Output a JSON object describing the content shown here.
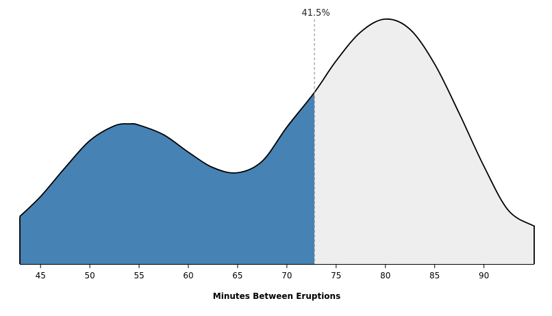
{
  "chart_data": {
    "type": "area",
    "xlabel": "Minutes Between Eruptions",
    "xlim": [
      42.9,
      95.1
    ],
    "ylim": [
      0,
      0.04
    ],
    "x_ticks": [
      45,
      50,
      55,
      60,
      65,
      70,
      75,
      80,
      85,
      90
    ],
    "density": {
      "x": [
        42.9,
        45,
        47.5,
        50,
        52.5,
        54,
        55,
        57.5,
        60,
        62.5,
        65,
        67.5,
        70,
        72.8,
        75,
        77.5,
        80,
        82.5,
        85,
        87.5,
        90,
        92.5,
        95.1
      ],
      "y": [
        0.0074,
        0.0105,
        0.015,
        0.0192,
        0.0215,
        0.0218,
        0.0216,
        0.0201,
        0.0174,
        0.015,
        0.0142,
        0.016,
        0.0213,
        0.0267,
        0.0316,
        0.0361,
        0.0381,
        0.0365,
        0.0311,
        0.0234,
        0.0152,
        0.0083,
        0.0059
      ]
    },
    "threshold_x": 72.8,
    "threshold_label": "41.5%",
    "colors": {
      "left_fill": "#4682b4",
      "right_fill": "#eeeeee",
      "outline": "#000000",
      "marker_line": "#888888"
    }
  }
}
